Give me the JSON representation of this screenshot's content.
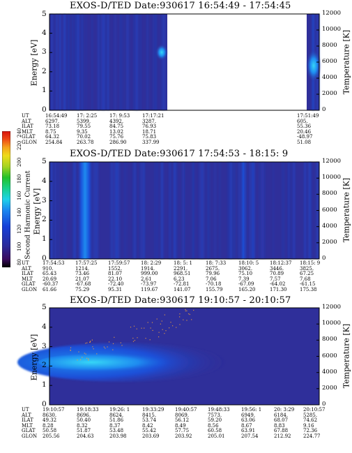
{
  "colors": {
    "background": "#2f2f9a",
    "band_medium": "#1b4fd8",
    "band_bright": "#1e8bf0",
    "band_peak": "#36d6f6",
    "noise": "#f4a13a"
  },
  "colorbar": {
    "label": "Second Harmonic Current",
    "ticks": [
      "80",
      "100",
      "120",
      "140",
      "160",
      "180",
      "200",
      "220",
      "240"
    ],
    "colors": [
      "#000000",
      "#3a0b5e",
      "#2a2a9c",
      "#1640d8",
      "#1b88f0",
      "#1ed2e8",
      "#18d18a",
      "#22c12a",
      "#a6d420",
      "#eedc1a",
      "#f5a41c",
      "#ee4a16",
      "#d8140f"
    ]
  },
  "panels": [
    {
      "title": "EXOS-D/TED   Date:930617  16:54:49 - 17:54:45",
      "ylabel": "Energy [eV]",
      "y2label": "Temperature [K]",
      "yticks": [
        "0",
        "1",
        "2",
        "3",
        "4",
        "5"
      ],
      "y2ticks": [
        "0",
        "2000",
        "4000",
        "6000",
        "8000",
        "10000",
        "12000"
      ],
      "row_labels": [
        "UT",
        "ALT",
        "ILAT",
        "MLT",
        "GLAT",
        "GLON"
      ],
      "columns": [
        [
          "16:54:49",
          "6297.",
          "73.18",
          "8.75",
          "64.32",
          "254.84"
        ],
        [
          "17: 2:25",
          "5399.",
          "79.55",
          "9.35",
          "70.02",
          "263.78"
        ],
        [
          "17: 9:53",
          "4392.",
          "84.75",
          "13.02",
          "75.76",
          "286.90"
        ],
        [
          "17:17:21",
          "3287.",
          "76.93",
          "18.71",
          "75.83",
          "337.99"
        ],
        [
          "17:51:49",
          "605.",
          "55.36",
          "20.46",
          "-48.97",
          "51.08"
        ]
      ],
      "chart_data": {
        "type": "heatmap",
        "x_time_range": [
          "16:54:49",
          "17:54:45"
        ],
        "data_gap": [
          "17:20:00",
          "17:49:30"
        ],
        "ylabel": "Energy [eV]",
        "ylim": [
          0,
          5
        ],
        "y2label": "Temperature [K]",
        "y2lim": [
          0,
          12000
        ],
        "features": [
          {
            "time": "17:02:25",
            "energy_range": [
              0,
              5
            ],
            "intensity": "medium",
            "kind": "vertical streak"
          },
          {
            "time": "17:17:00",
            "energy_center": 2.8,
            "energy_width": 0.6,
            "intensity": "high",
            "kind": "blob"
          },
          {
            "time": "17:53:30",
            "energy_center": 2.2,
            "energy_width": 1.2,
            "intensity": "high",
            "kind": "blob"
          }
        ]
      }
    },
    {
      "title": "EXOS-D/TED   Date:930617  17:54:53 - 18:15: 9",
      "ylabel": "Energy [eV]",
      "y2label": "Temperature [K]",
      "yticks": [
        "0",
        "1",
        "2",
        "3",
        "4",
        "5"
      ],
      "y2ticks": [
        "0",
        "2000",
        "4000",
        "6000",
        "8000",
        "10000",
        "12000"
      ],
      "row_labels": [
        "UT",
        "ALT",
        "ILAT",
        "MLT",
        "GLAT",
        "GLON"
      ],
      "columns": [
        [
          "17:54:53",
          "910.",
          "65.43",
          "20.69",
          "-60.37",
          "61.66"
        ],
        [
          "17:57:25",
          "1214.",
          "73.46",
          "21.07",
          "-67.68",
          "75.29"
        ],
        [
          "17:59:57",
          "1552.",
          "81.07",
          "22.10",
          "-72.40",
          "95.31"
        ],
        [
          "18: 2:29",
          "1914.",
          "999.00",
          "2.61",
          "-73.97",
          "119.67"
        ],
        [
          "18: 5: 1",
          "2291.",
          "968.51",
          "6.23",
          "-72.81",
          "141.07"
        ],
        [
          "18: 7:33",
          "2675.",
          "79.96",
          "7.06",
          "-70.18",
          "155.79"
        ],
        [
          "18:10: 5",
          "3062.",
          "75.10",
          "7.39",
          "-67.09",
          "165.20"
        ],
        [
          "18:12:37",
          "3446.",
          "70.89",
          "7.57",
          "-64.02",
          "171.30"
        ],
        [
          "18:15: 9",
          "3825.",
          "67.25",
          "7.68",
          "-61.15",
          "175.38"
        ]
      ],
      "chart_data": {
        "type": "heatmap",
        "x_time_range": [
          "17:54:53",
          "18:15:09"
        ],
        "ylabel": "Energy [eV]",
        "ylim": [
          0,
          5
        ],
        "y2label": "Temperature [K]",
        "y2lim": [
          0,
          12000
        ],
        "features": [
          {
            "time": "17:58:10",
            "energy_range": [
              0,
              5
            ],
            "intensity": "high",
            "kind": "vertical band"
          },
          {
            "time": "18:09:50",
            "energy_range": [
              0,
              5
            ],
            "intensity": "medium",
            "kind": "vertical band"
          }
        ]
      }
    },
    {
      "title": "EXOS-D/TED   Date:930617  19:10:57 - 20:10:57",
      "ylabel": "Energy [eV]",
      "y2label": "Temperature [K]",
      "yticks": [
        "0",
        "1",
        "2",
        "3",
        "4",
        "5"
      ],
      "y2ticks": [
        "0",
        "2000",
        "4000",
        "6000",
        "8000",
        "10000",
        "12000"
      ],
      "row_labels": [
        "UT",
        "ALT",
        "ILAT",
        "MLT",
        "GLAT",
        "GLON"
      ],
      "columns": [
        [
          "19:10:57",
          "8630.",
          "49.32",
          "8.28",
          "50.58",
          "205.56"
        ],
        [
          "19:18:33",
          "8696.",
          "50.40",
          "8.32",
          "51.87",
          "204.63"
        ],
        [
          "19:26: 1",
          "8624.",
          "51.86",
          "8.37",
          "53.48",
          "203.98"
        ],
        [
          "19:33:29",
          "8415.",
          "53.74",
          "8.42",
          "55.42",
          "203.69"
        ],
        [
          "19:40:57",
          "8069.",
          "56.12",
          "8.49",
          "57.75",
          "203.92"
        ],
        [
          "19:48:33",
          "7573.",
          "59.20",
          "8.56",
          "60.58",
          "205.01"
        ],
        [
          "19:56: 1",
          "6949.",
          "63.06",
          "8.67",
          "63.91",
          "207.54"
        ],
        [
          "20: 3:29",
          "6184.",
          "68.07",
          "8.83",
          "67.88",
          "212.92"
        ],
        [
          "20:10:57",
          "5285.",
          "74.62",
          "9.16",
          "72.36",
          "224.77"
        ]
      ],
      "chart_data": {
        "type": "heatmap",
        "x_time_range": [
          "19:10:57",
          "20:10:57"
        ],
        "ylabel": "Energy [eV]",
        "ylim": [
          0,
          5
        ],
        "y2label": "Temperature [K]",
        "y2lim": [
          0,
          12000
        ],
        "features": [
          {
            "time_range": [
              "19:10:57",
              "19:48:00"
            ],
            "energy_center": 2.3,
            "energy_width": 1.4,
            "intensity": "high",
            "kind": "horizontal band"
          },
          {
            "time_range": [
              "19:20:00",
              "19:40:57"
            ],
            "energy_range": [
              2.5,
              5
            ],
            "intensity": "low",
            "kind": "rising dotted noise"
          }
        ]
      }
    }
  ]
}
